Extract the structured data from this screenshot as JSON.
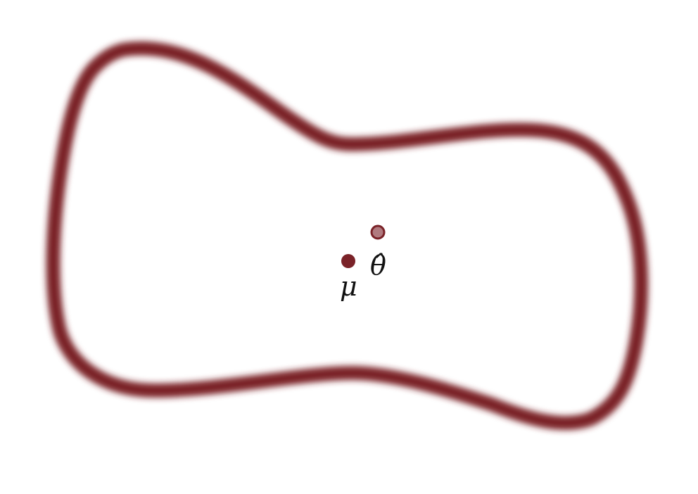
{
  "diagram": {
    "colors": {
      "boundary": "#7a2228",
      "mean_point": "#7a2228",
      "estimate_fill": "#b07a7f",
      "estimate_stroke": "#7a2228",
      "background": "#ffffff",
      "label": "#111111"
    },
    "points": {
      "mean": {
        "label": "μ",
        "style": "filled"
      },
      "estimate": {
        "label": "θ̂",
        "style": "hollow"
      }
    }
  }
}
